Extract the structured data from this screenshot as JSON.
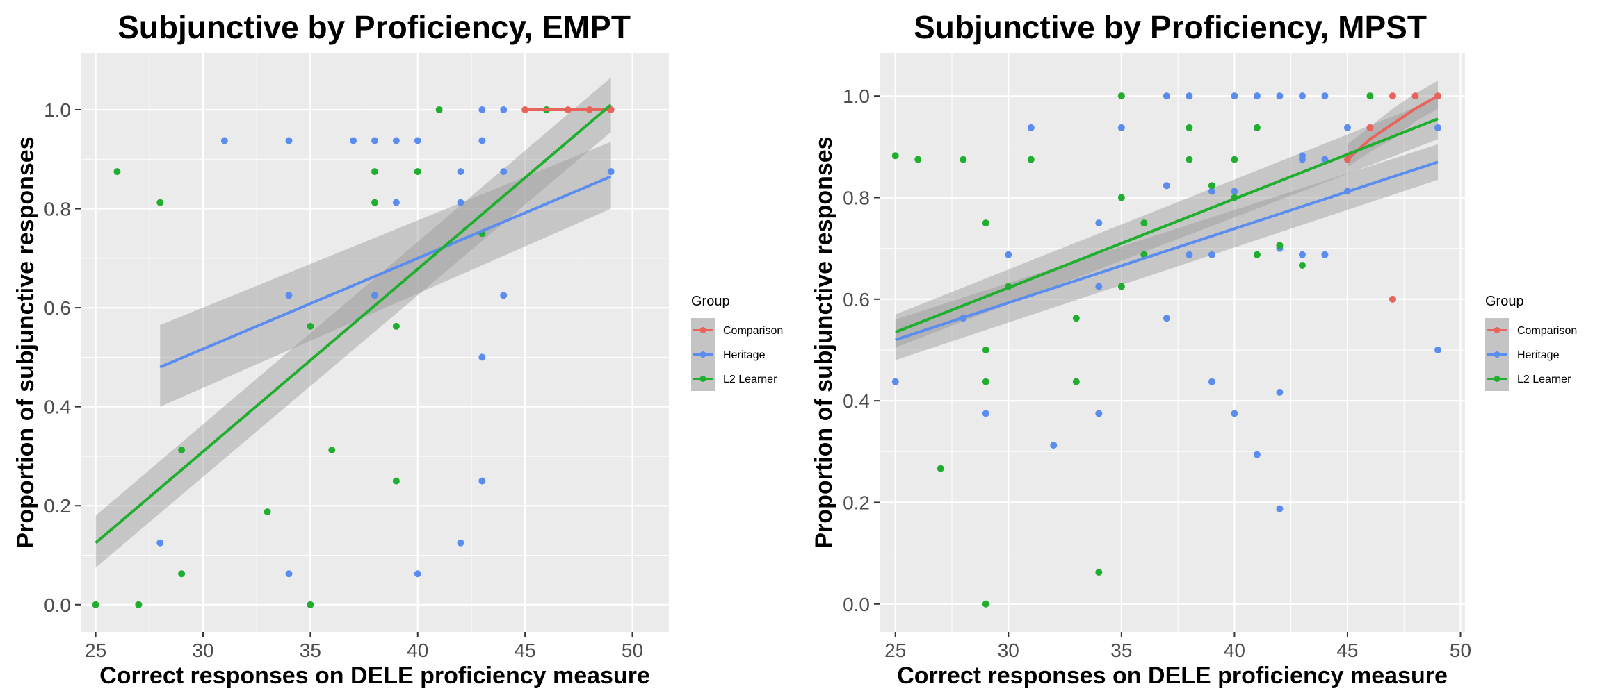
{
  "chart_data": [
    {
      "type": "scatter",
      "title": "Subjunctive by Proficiency, EMPT",
      "xlabel": "Correct responses on DELE proficiency measure",
      "ylabel": "Proportion of subjunctive responses",
      "xlim": [
        24.3,
        51.7
      ],
      "ylim": [
        -0.055,
        1.115
      ],
      "xticks": [
        "25",
        "30",
        "35",
        "40",
        "45",
        "50"
      ],
      "yticks": [
        "0.0",
        "0.2",
        "0.4",
        "0.6",
        "0.8",
        "1.0"
      ],
      "grid": true,
      "legend": {
        "title": "Group",
        "position": "right",
        "entries": [
          "Comparison",
          "Heritage",
          "L2 Learner"
        ]
      },
      "colors": {
        "Comparison": "#E8645A",
        "Heritage": "#5B8DEF",
        "L2 Learner": "#1FAE2E",
        "band": "#999999",
        "panel": "#EBEBEB"
      },
      "series": [
        {
          "name": "Comparison",
          "points": [
            [
              45,
              1.0
            ],
            [
              46,
              1.0
            ],
            [
              47,
              1.0
            ],
            [
              48,
              1.0
            ],
            [
              49,
              1.0
            ]
          ],
          "fit": {
            "x": [
              45,
              49
            ],
            "y": [
              1.0,
              1.0
            ],
            "lo": [
              1.0,
              1.0
            ],
            "hi": [
              1.0,
              1.0
            ]
          }
        },
        {
          "name": "Heritage",
          "points": [
            [
              28,
              0.125
            ],
            [
              31,
              0.9375
            ],
            [
              34,
              0.9375
            ],
            [
              34,
              0.625
            ],
            [
              34,
              0.0625
            ],
            [
              37,
              0.9375
            ],
            [
              38,
              0.9375
            ],
            [
              38,
              0.625
            ],
            [
              39,
              0.9375
            ],
            [
              39,
              0.8125
            ],
            [
              40,
              0.9375
            ],
            [
              40,
              0.0625
            ],
            [
              42,
              0.875
            ],
            [
              42,
              0.8125
            ],
            [
              42,
              0.125
            ],
            [
              43,
              1.0
            ],
            [
              43,
              0.9375
            ],
            [
              43,
              0.5
            ],
            [
              43,
              0.25
            ],
            [
              44,
              1.0
            ],
            [
              44,
              0.875
            ],
            [
              44,
              0.625
            ],
            [
              49,
              0.875
            ]
          ],
          "fit": {
            "x": [
              28,
              49
            ],
            "y": [
              0.48,
              0.865
            ],
            "lo": [
              0.4,
              0.8
            ],
            "hi": [
              0.565,
              0.935
            ]
          }
        },
        {
          "name": "L2 Learner",
          "points": [
            [
              25,
              0.0
            ],
            [
              26,
              0.875
            ],
            [
              27,
              0.0
            ],
            [
              28,
              0.8125
            ],
            [
              29,
              0.3125
            ],
            [
              29,
              0.0625
            ],
            [
              33,
              0.1875
            ],
            [
              35,
              0.5625
            ],
            [
              35,
              0.0
            ],
            [
              36,
              0.3125
            ],
            [
              38,
              0.875
            ],
            [
              38,
              0.8125
            ],
            [
              39,
              0.5625
            ],
            [
              39,
              0.25
            ],
            [
              40,
              0.875
            ],
            [
              41,
              1.0
            ],
            [
              43,
              0.75
            ],
            [
              46,
              1.0
            ]
          ],
          "fit": {
            "x": [
              25,
              49
            ],
            "y": [
              0.125,
              1.01
            ],
            "lo": [
              0.075,
              0.955
            ],
            "hi": [
              0.18,
              1.065
            ]
          }
        }
      ]
    },
    {
      "type": "scatter",
      "title": "Subjunctive by Proficiency, MPST",
      "xlabel": "Correct responses on DELE proficiency measure",
      "ylabel": "Proportion of subjunctive responses",
      "xlim": [
        24.3,
        50.2
      ],
      "ylim": [
        -0.055,
        1.085
      ],
      "xticks": [
        "25",
        "30",
        "35",
        "40",
        "45",
        "50"
      ],
      "yticks": [
        "0.0",
        "0.2",
        "0.4",
        "0.6",
        "0.8",
        "1.0"
      ],
      "grid": true,
      "legend": {
        "title": "Group",
        "position": "right",
        "entries": [
          "Comparison",
          "Heritage",
          "L2 Learner"
        ]
      },
      "colors": {
        "Comparison": "#E8645A",
        "Heritage": "#5B8DEF",
        "L2 Learner": "#1FAE2E",
        "band": "#999999",
        "panel": "#EBEBEB"
      },
      "series": [
        {
          "name": "Comparison",
          "points": [
            [
              45,
              0.875
            ],
            [
              46,
              0.9375
            ],
            [
              47,
              1.0
            ],
            [
              47,
              0.6
            ],
            [
              48,
              1.0
            ],
            [
              49,
              1.0
            ]
          ],
          "fit": {
            "x": [
              45,
              46,
              47,
              48,
              49
            ],
            "y": [
              0.875,
              0.915,
              0.945,
              0.975,
              1.0
            ],
            "lo": [
              0.86,
              0.89,
              0.915,
              0.95,
              0.975
            ],
            "hi": [
              0.905,
              0.94,
              0.975,
              1.005,
              1.03
            ]
          }
        },
        {
          "name": "Heritage",
          "points": [
            [
              25,
              0.4375
            ],
            [
              28,
              0.5625
            ],
            [
              30,
              0.6875
            ],
            [
              31,
              0.9375
            ],
            [
              32,
              0.3125
            ],
            [
              34,
              0.75
            ],
            [
              34,
              0.625
            ],
            [
              34,
              0.375
            ],
            [
              35,
              0.9375
            ],
            [
              36,
              0.6875
            ],
            [
              37,
              1.0
            ],
            [
              37,
              0.8235
            ],
            [
              37,
              0.5625
            ],
            [
              38,
              1.0
            ],
            [
              38,
              0.6875
            ],
            [
              39,
              0.8125
            ],
            [
              39,
              0.6875
            ],
            [
              39,
              0.4375
            ],
            [
              40,
              1.0
            ],
            [
              40,
              0.8125
            ],
            [
              40,
              0.375
            ],
            [
              41,
              1.0
            ],
            [
              41,
              0.2941
            ],
            [
              42,
              1.0
            ],
            [
              42,
              0.7
            ],
            [
              42,
              0.4167
            ],
            [
              42,
              0.1875
            ],
            [
              43,
              1.0
            ],
            [
              43,
              0.8824
            ],
            [
              43,
              0.875
            ],
            [
              43,
              0.6875
            ],
            [
              44,
              1.0
            ],
            [
              44,
              0.875
            ],
            [
              44,
              0.6875
            ],
            [
              45,
              0.9375
            ],
            [
              45,
              0.8125
            ],
            [
              49,
              0.9375
            ],
            [
              49,
              0.5
            ],
            [
              29,
              0.375
            ]
          ],
          "fit": {
            "x": [
              25,
              49
            ],
            "y": [
              0.52,
              0.87
            ],
            "lo": [
              0.48,
              0.835
            ],
            "hi": [
              0.56,
              0.905
            ]
          }
        },
        {
          "name": "L2 Learner",
          "points": [
            [
              25,
              0.8824
            ],
            [
              26,
              0.875
            ],
            [
              27,
              0.2667
            ],
            [
              28,
              0.875
            ],
            [
              29,
              0.75
            ],
            [
              29,
              0.5
            ],
            [
              29,
              0.4375
            ],
            [
              29,
              0.0
            ],
            [
              30,
              0.625
            ],
            [
              31,
              0.875
            ],
            [
              33,
              0.5625
            ],
            [
              33,
              0.4375
            ],
            [
              34,
              0.0625
            ],
            [
              35,
              1.0
            ],
            [
              35,
              0.8
            ],
            [
              35,
              0.625
            ],
            [
              36,
              0.75
            ],
            [
              36,
              0.6875
            ],
            [
              38,
              0.9375
            ],
            [
              38,
              0.875
            ],
            [
              39,
              0.8235
            ],
            [
              40,
              0.875
            ],
            [
              40,
              0.8
            ],
            [
              41,
              0.9375
            ],
            [
              41,
              0.6875
            ],
            [
              42,
              0.7059
            ],
            [
              43,
              0.6667
            ],
            [
              46,
              1.0
            ]
          ],
          "fit": {
            "x": [
              25,
              49
            ],
            "y": [
              0.535,
              0.955
            ],
            "lo": [
              0.505,
              0.915
            ],
            "hi": [
              0.57,
              0.995
            ]
          }
        }
      ]
    }
  ]
}
